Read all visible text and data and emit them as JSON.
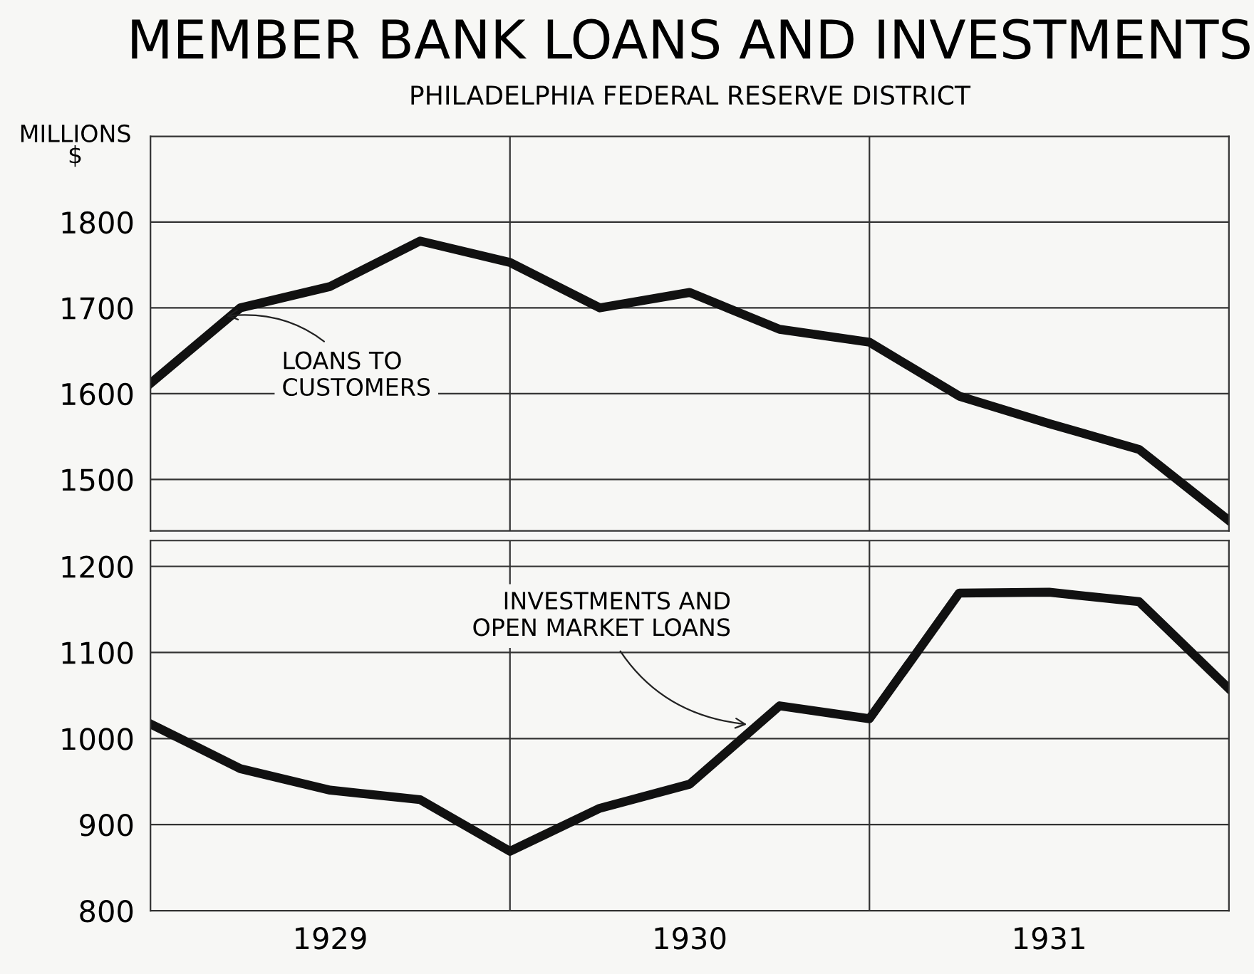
{
  "chart_data": [
    {
      "type": "line",
      "title": "MEMBER BANK LOANS AND INVESTMENTS",
      "subtitle": "PHILADELPHIA FEDERAL RESERVE DISTRICT",
      "ylabel": "MILLIONS\n$",
      "x": [
        1929,
        1929.25,
        1929.5,
        1929.75,
        1930,
        1930.25,
        1930.5,
        1930.75,
        1931,
        1931.25,
        1931.5,
        1931.75,
        1932
      ],
      "series": [
        {
          "color": "#111111",
          "values": [
            1612,
            1700,
            1725,
            1778,
            1753,
            1700,
            1718,
            1675,
            1660,
            1597,
            1565,
            1535,
            1452
          ]
        }
      ],
      "annotations": [
        {
          "text": "LOANS TO\nCUSTOMERS",
          "x": 1929.2,
          "y": 1690
        }
      ],
      "xlim": [
        1929,
        1932
      ],
      "ylim": [
        1440,
        1900
      ],
      "yticks": [
        1500,
        1600,
        1700,
        1800
      ],
      "ref_lines": [
        {
          "axis": "x",
          "value": 1930
        },
        {
          "axis": "x",
          "value": 1931
        }
      ],
      "grid": "y",
      "tick_labels": "y",
      "line_style": "solid",
      "marker": "none",
      "legend": false
    },
    {
      "type": "line",
      "x": [
        1929,
        1929.25,
        1929.5,
        1929.75,
        1930,
        1930.25,
        1930.5,
        1930.75,
        1931,
        1931.25,
        1931.5,
        1931.75,
        1932
      ],
      "series": [
        {
          "color": "#111111",
          "values": [
            1017,
            965,
            940,
            929,
            869,
            919,
            947,
            1038,
            1023,
            1169,
            1170,
            1159,
            1058
          ]
        }
      ],
      "annotations": [
        {
          "text": "INVESTMENTS AND\nOPEN MARKET LOANS",
          "x": 1930.67,
          "y": 1016
        }
      ],
      "xlim": [
        1929,
        1932
      ],
      "ylim": [
        800,
        1230
      ],
      "yticks": [
        800,
        900,
        1000,
        1100,
        1200
      ],
      "xticks": [
        {
          "value": 1929.5,
          "label": "1929"
        },
        {
          "value": 1930.5,
          "label": "1930"
        },
        {
          "value": 1931.5,
          "label": "1931"
        }
      ],
      "ref_lines": [
        {
          "axis": "x",
          "value": 1930
        },
        {
          "axis": "x",
          "value": 1931
        }
      ],
      "grid": "y",
      "line_style": "solid",
      "marker": "none",
      "legend": false
    }
  ]
}
